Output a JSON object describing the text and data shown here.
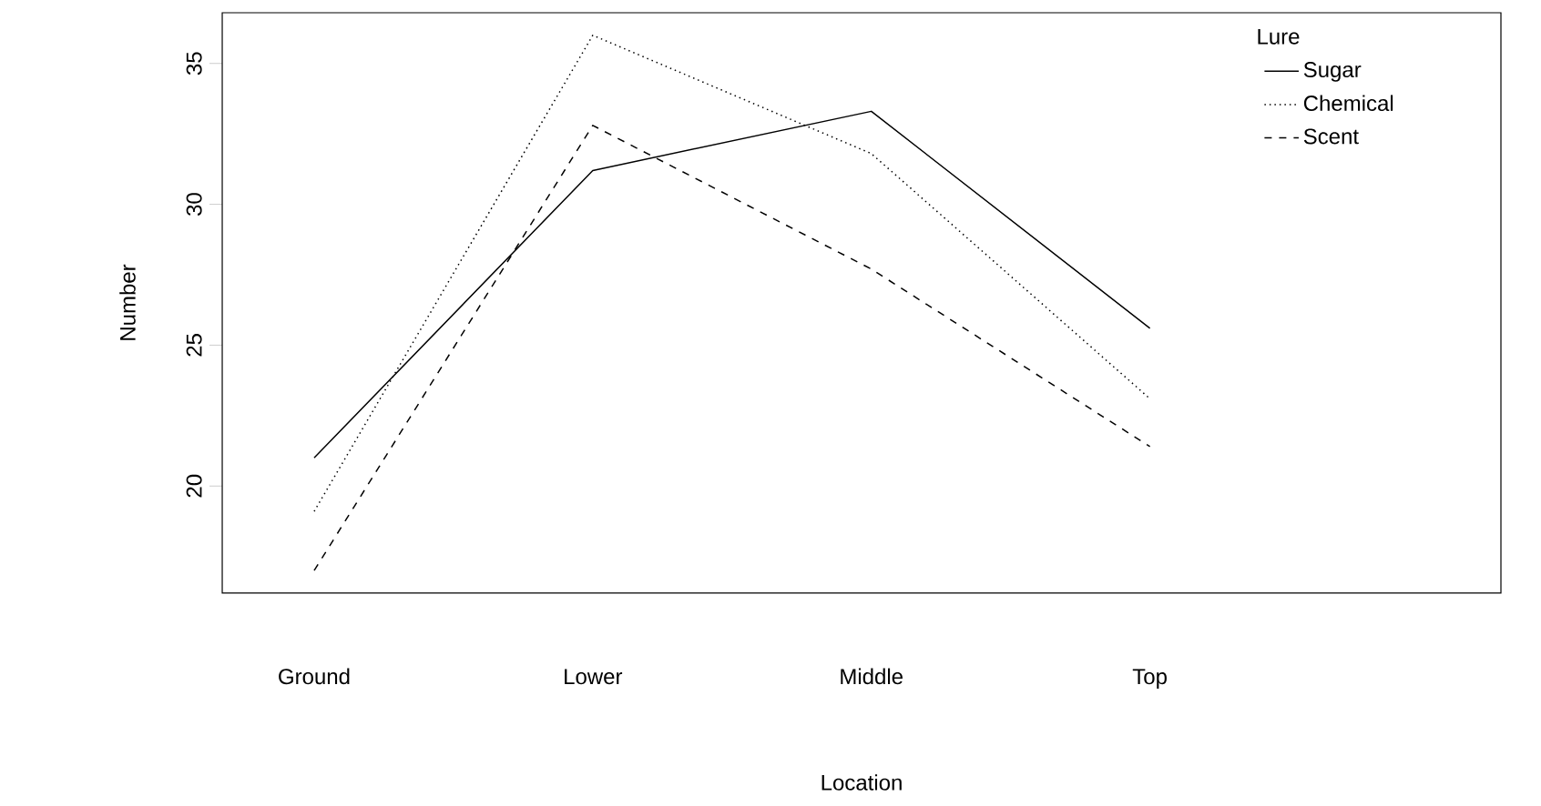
{
  "chart_data": {
    "type": "line",
    "xlabel": "Location",
    "ylabel": "Number",
    "legend_title": "Lure",
    "categories": [
      "Ground",
      "Lower",
      "Middle",
      "Top"
    ],
    "series": [
      {
        "name": "Sugar",
        "color": "#000000",
        "line_style": "solid",
        "values": [
          21.0,
          31.2,
          33.3,
          25.6
        ]
      },
      {
        "name": "Chemical",
        "color": "#000000",
        "line_style": "dotted",
        "values": [
          19.1,
          36.0,
          31.8,
          23.1
        ]
      },
      {
        "name": "Scent",
        "color": "#000000",
        "line_style": "dashed",
        "values": [
          17.0,
          32.8,
          27.7,
          21.4
        ]
      }
    ],
    "ylim": [
      16.2,
      36.8
    ],
    "yticks": [
      20,
      25,
      30,
      35
    ],
    "legend": "top right"
  }
}
